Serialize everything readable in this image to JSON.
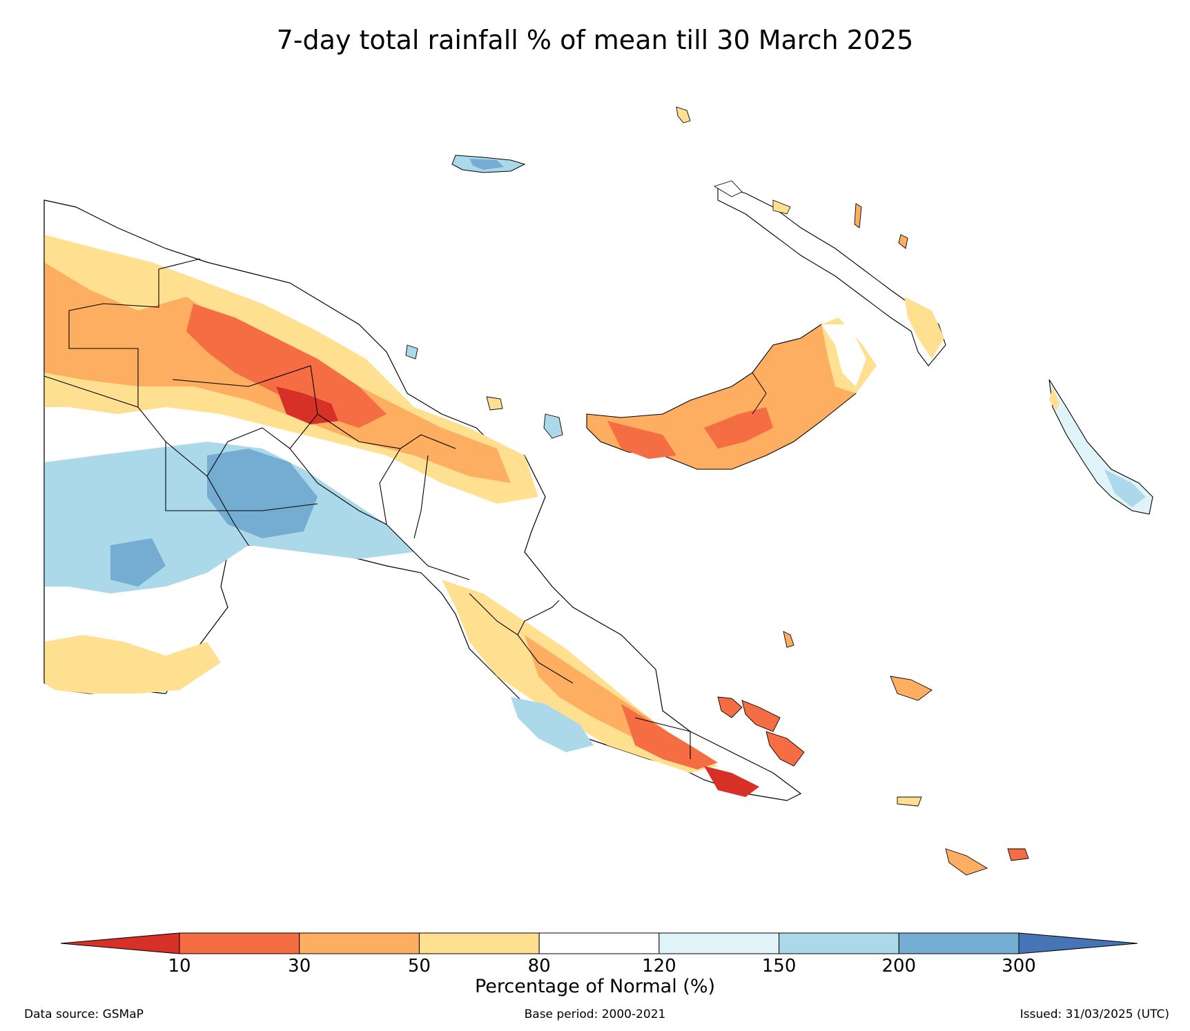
{
  "title": "7-day total rainfall % of mean till 30 March 2025",
  "colorbar": {
    "title": "Percentage of Normal (%)",
    "ticks": [
      "10",
      "30",
      "50",
      "80",
      "120",
      "150",
      "200",
      "300"
    ],
    "bins": [
      {
        "range": "<10",
        "color": "#d73027"
      },
      {
        "range": "10-30",
        "color": "#f46d43"
      },
      {
        "range": "30-50",
        "color": "#fdae61"
      },
      {
        "range": "50-80",
        "color": "#fee090"
      },
      {
        "range": "80-120",
        "color": "#ffffff"
      },
      {
        "range": "120-150",
        "color": "#e0f3f8"
      },
      {
        "range": "150-200",
        "color": "#abd9e9"
      },
      {
        "range": "200-300",
        "color": "#74add1"
      },
      {
        "range": ">300",
        "color": "#4575b4"
      }
    ]
  },
  "footer": {
    "source": "Data source: GSMaP",
    "base_period": "Base period: 2000-2021",
    "issued": "Issued: 31/03/2025 (UTC)"
  }
}
